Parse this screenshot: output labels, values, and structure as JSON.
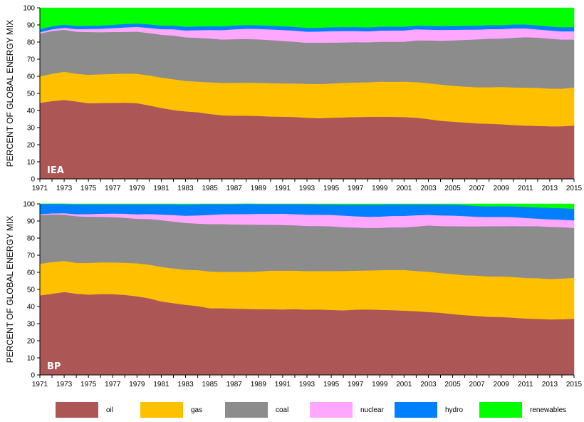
{
  "legend": [
    {
      "key": "oil",
      "label": "oil",
      "color": "#ad5656"
    },
    {
      "key": "gas",
      "label": "gas",
      "color": "#ffc000"
    },
    {
      "key": "coal",
      "label": "coal",
      "color": "#8c8c8c"
    },
    {
      "key": "nuclear",
      "label": "nuclear",
      "color": "#ffa6ff"
    },
    {
      "key": "hydro",
      "label": "hydro",
      "color": "#0080ff"
    },
    {
      "key": "renewables",
      "label": "renewables",
      "color": "#00ff00"
    }
  ],
  "chart_data": [
    {
      "type": "area",
      "stacked": true,
      "panel_label": "IEA",
      "ylabel": "PERCENT OF GLOBAL ENERGY MIX",
      "ylim": [
        0,
        100
      ],
      "yticks": [
        0,
        10,
        20,
        30,
        40,
        50,
        60,
        70,
        80,
        90,
        100
      ],
      "x": [
        1971,
        1972,
        1973,
        1974,
        1975,
        1976,
        1977,
        1978,
        1979,
        1980,
        1981,
        1982,
        1983,
        1984,
        1985,
        1986,
        1987,
        1988,
        1989,
        1990,
        1991,
        1992,
        1993,
        1994,
        1995,
        1996,
        1997,
        1998,
        1999,
        2000,
        2001,
        2002,
        2003,
        2004,
        2005,
        2006,
        2007,
        2008,
        2009,
        2010,
        2011,
        2012,
        2013,
        2014,
        2015
      ],
      "xticks": [
        "1971",
        "1973",
        "1975",
        "1977",
        "1979",
        "1981",
        "1983",
        "1985",
        "1987",
        "1989",
        "1991",
        "1993",
        "1995",
        "1997",
        "1999",
        "2001",
        "2003",
        "2005",
        "2007",
        "2009",
        "2011",
        "2013",
        "2015"
      ],
      "series": [
        {
          "name": "oil",
          "values": [
            44.5,
            45.5,
            46.2,
            45.3,
            44.3,
            44.4,
            44.5,
            44.6,
            44.3,
            43.0,
            41.5,
            40.3,
            39.5,
            39.0,
            38.0,
            37.2,
            37.0,
            37.0,
            36.8,
            36.5,
            36.4,
            36.2,
            35.8,
            35.5,
            35.8,
            36.0,
            36.2,
            36.3,
            36.4,
            36.3,
            36.2,
            35.8,
            35.0,
            34.0,
            33.5,
            33.0,
            32.5,
            32.3,
            32.0,
            31.5,
            31.2,
            31.0,
            30.8,
            30.8,
            31.2
          ]
        },
        {
          "name": "gas",
          "values": [
            15.5,
            16.0,
            16.5,
            16.2,
            16.6,
            16.8,
            16.9,
            17.0,
            17.2,
            17.5,
            17.8,
            18.0,
            17.8,
            17.9,
            18.5,
            19.0,
            19.2,
            19.3,
            19.4,
            19.5,
            19.5,
            19.6,
            19.8,
            20.0,
            20.0,
            20.2,
            20.2,
            20.2,
            20.5,
            20.5,
            20.7,
            20.8,
            21.0,
            21.2,
            21.0,
            21.0,
            21.1,
            21.3,
            21.8,
            22.0,
            22.2,
            22.3,
            22.0,
            22.0,
            22.3
          ]
        },
        {
          "name": "coal",
          "values": [
            25.0,
            25.0,
            24.5,
            24.6,
            25.0,
            24.6,
            24.5,
            24.4,
            24.6,
            24.8,
            25.0,
            25.5,
            25.5,
            25.6,
            25.6,
            25.3,
            25.5,
            25.5,
            25.4,
            25.2,
            24.8,
            24.4,
            24.0,
            24.2,
            23.9,
            23.6,
            23.6,
            23.4,
            23.3,
            23.4,
            23.3,
            24.4,
            25.0,
            25.6,
            26.5,
            27.3,
            28.0,
            28.4,
            28.3,
            29.0,
            29.5,
            29.3,
            29.2,
            28.7,
            28.0
          ]
        },
        {
          "name": "nuclear",
          "values": [
            0.8,
            1.0,
            1.2,
            1.5,
            1.8,
            2.0,
            2.3,
            2.6,
            2.8,
            3.0,
            3.3,
            3.7,
            4.0,
            4.5,
            5.0,
            5.5,
            5.8,
            6.0,
            6.1,
            6.2,
            6.4,
            6.5,
            6.5,
            6.5,
            6.7,
            6.7,
            6.5,
            6.4,
            6.5,
            6.6,
            6.6,
            6.5,
            6.3,
            6.3,
            6.2,
            6.0,
            5.7,
            5.6,
            5.5,
            5.5,
            5.1,
            4.8,
            4.8,
            4.8,
            4.8
          ]
        },
        {
          "name": "hydro",
          "values": [
            1.8,
            1.8,
            1.8,
            1.9,
            1.9,
            1.9,
            1.9,
            2.0,
            2.0,
            2.1,
            2.1,
            2.2,
            2.2,
            2.2,
            2.2,
            2.2,
            2.2,
            2.2,
            2.2,
            2.2,
            2.2,
            2.2,
            2.2,
            2.2,
            2.3,
            2.3,
            2.3,
            2.3,
            2.3,
            2.3,
            2.2,
            2.2,
            2.2,
            2.3,
            2.3,
            2.3,
            2.3,
            2.3,
            2.3,
            2.3,
            2.3,
            2.4,
            2.4,
            2.4,
            2.5
          ]
        },
        {
          "name": "renewables",
          "values": [
            12.4,
            10.7,
            9.8,
            10.5,
            10.4,
            10.3,
            9.9,
            9.4,
            9.1,
            9.6,
            10.3,
            10.3,
            11.0,
            10.8,
            10.7,
            10.8,
            10.3,
            10.0,
            10.1,
            10.4,
            10.7,
            11.1,
            11.7,
            11.6,
            11.3,
            11.2,
            11.2,
            11.4,
            11.0,
            10.9,
            11.0,
            10.3,
            10.5,
            10.6,
            10.5,
            10.4,
            10.4,
            10.1,
            10.1,
            9.7,
            9.7,
            10.2,
            10.8,
            11.3,
            11.2
          ]
        }
      ]
    },
    {
      "type": "area",
      "stacked": true,
      "panel_label": "BP",
      "ylabel": "PERCENT OF GLOBAL ENERGY MIX",
      "ylim": [
        0,
        100
      ],
      "yticks": [
        0,
        10,
        20,
        30,
        40,
        50,
        60,
        70,
        80,
        90,
        100
      ],
      "x": [
        1971,
        1972,
        1973,
        1974,
        1975,
        1976,
        1977,
        1978,
        1979,
        1980,
        1981,
        1982,
        1983,
        1984,
        1985,
        1986,
        1987,
        1988,
        1989,
        1990,
        1991,
        1992,
        1993,
        1994,
        1995,
        1996,
        1997,
        1998,
        1999,
        2000,
        2001,
        2002,
        2003,
        2004,
        2005,
        2006,
        2007,
        2008,
        2009,
        2010,
        2011,
        2012,
        2013,
        2014,
        2015
      ],
      "xticks": [
        "1971",
        "1973",
        "1975",
        "1977",
        "1979",
        "1981",
        "1983",
        "1985",
        "1987",
        "1989",
        "1991",
        "1993",
        "1995",
        "1997",
        "1999",
        "2001",
        "2003",
        "2005",
        "2007",
        "2009",
        "2011",
        "2013",
        "2015"
      ],
      "series": [
        {
          "name": "oil",
          "values": [
            46.5,
            47.5,
            48.5,
            47.5,
            47.0,
            47.3,
            47.3,
            46.8,
            46.0,
            44.8,
            43.0,
            42.0,
            41.0,
            40.3,
            39.0,
            39.0,
            38.8,
            38.6,
            38.5,
            38.5,
            38.3,
            38.5,
            38.2,
            38.3,
            38.0,
            37.8,
            38.2,
            38.3,
            38.1,
            37.9,
            37.6,
            37.3,
            36.8,
            36.4,
            35.6,
            35.0,
            34.5,
            34.0,
            33.9,
            33.5,
            33.0,
            32.8,
            32.5,
            32.6,
            32.8
          ]
        },
        {
          "name": "gas",
          "values": [
            18.5,
            18.5,
            18.2,
            18.0,
            18.5,
            18.5,
            18.5,
            18.8,
            19.3,
            19.7,
            20.2,
            20.3,
            20.5,
            21.0,
            21.5,
            21.3,
            21.5,
            21.7,
            22.0,
            22.5,
            22.7,
            22.5,
            22.5,
            22.5,
            22.8,
            23.0,
            22.8,
            22.8,
            23.2,
            23.5,
            23.8,
            23.5,
            23.6,
            23.2,
            23.4,
            23.3,
            23.6,
            23.6,
            23.7,
            23.8,
            23.7,
            23.8,
            23.6,
            23.8,
            24.0
          ]
        },
        {
          "name": "coal",
          "values": [
            28.5,
            27.8,
            27.0,
            27.3,
            27.0,
            26.7,
            26.5,
            26.3,
            26.0,
            26.7,
            27.3,
            27.4,
            27.4,
            27.2,
            27.7,
            27.9,
            27.7,
            27.6,
            27.4,
            26.8,
            26.7,
            26.5,
            26.4,
            26.3,
            26.1,
            25.6,
            25.2,
            24.9,
            24.7,
            24.9,
            24.9,
            26.0,
            27.0,
            27.5,
            28.0,
            28.6,
            28.8,
            29.4,
            29.4,
            29.8,
            30.3,
            30.4,
            30.5,
            30.0,
            29.2
          ]
        },
        {
          "name": "nuclear",
          "values": [
            0.5,
            0.7,
            0.9,
            1.2,
            1.5,
            1.8,
            2.1,
            2.4,
            2.6,
            2.9,
            3.3,
            3.8,
            4.2,
            4.8,
            5.4,
            5.8,
            6.0,
            6.2,
            6.3,
            6.4,
            6.6,
            6.5,
            6.6,
            6.6,
            6.7,
            6.8,
            6.6,
            6.5,
            6.6,
            6.7,
            6.7,
            6.6,
            6.2,
            6.2,
            6.2,
            6.0,
            5.6,
            5.4,
            5.4,
            5.2,
            4.8,
            4.4,
            4.4,
            4.4,
            4.4
          ]
        },
        {
          "name": "hydro",
          "values": [
            6.0,
            5.5,
            5.4,
            5.8,
            5.8,
            5.5,
            5.4,
            5.5,
            5.9,
            5.7,
            6.0,
            6.3,
            6.6,
            6.5,
            6.3,
            5.9,
            5.9,
            5.9,
            5.7,
            5.7,
            5.6,
            5.9,
            6.2,
            6.0,
            6.1,
            6.4,
            6.8,
            7.1,
            7.0,
            6.8,
            6.7,
            6.3,
            6.1,
            6.3,
            6.4,
            6.4,
            6.3,
            6.2,
            6.3,
            6.3,
            6.5,
            6.6,
            6.7,
            6.7,
            6.8
          ]
        },
        {
          "name": "renewables",
          "values": [
            0,
            0,
            0,
            0.2,
            0.2,
            0.2,
            0.2,
            0.2,
            0.2,
            0.2,
            0.2,
            0.2,
            0.3,
            0.2,
            0.1,
            0.1,
            0.1,
            0.0,
            0.1,
            0.1,
            0.1,
            0.1,
            0.1,
            0.3,
            0.3,
            0.4,
            0.4,
            0.4,
            0.4,
            0.2,
            0.3,
            0.3,
            0.3,
            0.4,
            0.4,
            0.7,
            1.2,
            1.4,
            1.3,
            1.4,
            1.7,
            2.0,
            2.3,
            2.5,
            2.8
          ]
        }
      ]
    }
  ]
}
